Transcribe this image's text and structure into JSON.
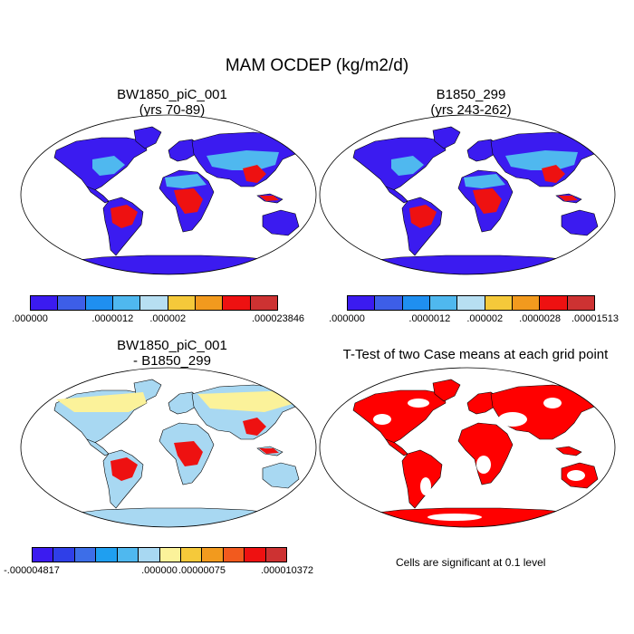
{
  "title": "MAM OCDEP (kg/m2/d)",
  "panels": {
    "p1": {
      "line1": "BW1850_piC_001",
      "line2": "(yrs 70-89)"
    },
    "p2": {
      "line1": "B1850_299",
      "line2": "(yrs 243-262)"
    },
    "p3": {
      "line1": "BW1850_piC_001",
      "line2": "- B1850_299"
    },
    "p4": {
      "line1": "T-Test of two Case means at each grid point"
    }
  },
  "colorbars": {
    "cb1": {
      "colors": [
        "#3b1bf0",
        "#3d5ee8",
        "#1f8ff0",
        "#4fb8ef",
        "#b7dff2",
        "#f5c93a",
        "#f29a1e",
        "#ee1111",
        "#cd3232"
      ],
      "labels": [
        ".000000",
        ".0000012",
        ".000002",
        ".000023846"
      ]
    },
    "cb2": {
      "colors": [
        "#3b1bf0",
        "#3d5ee8",
        "#1f8ff0",
        "#4fb8ef",
        "#b7dff2",
        "#f5c93a",
        "#f29a1e",
        "#ee1111",
        "#cd3232"
      ],
      "labels": [
        ".000000",
        ".0000012",
        ".000002",
        ".0000028",
        ".00001513"
      ]
    },
    "cb3": {
      "colors": [
        "#3b1bf0",
        "#2f3fe8",
        "#3d6ee8",
        "#1f9ff0",
        "#4fb8ef",
        "#a8d8f2",
        "#fbf29a",
        "#f5c93a",
        "#f29a1e",
        "#f25a1e",
        "#ee1111",
        "#cd3232"
      ],
      "labels": [
        "-.000004817",
        ".000000",
        ".00000075",
        ".000010372"
      ]
    }
  },
  "note": "Cells are significant at 0.1 level",
  "map_colors": {
    "ocean": "#ffffff",
    "p1_land": "#3b1bf0",
    "p1_mid": "#4fb8ef",
    "p1_hot": "#ee1111",
    "p3_land": "#a8d8f2",
    "p3_yellow": "#fbf29a",
    "p3_hot": "#ee1111",
    "p4_sig": "#ff0000"
  }
}
